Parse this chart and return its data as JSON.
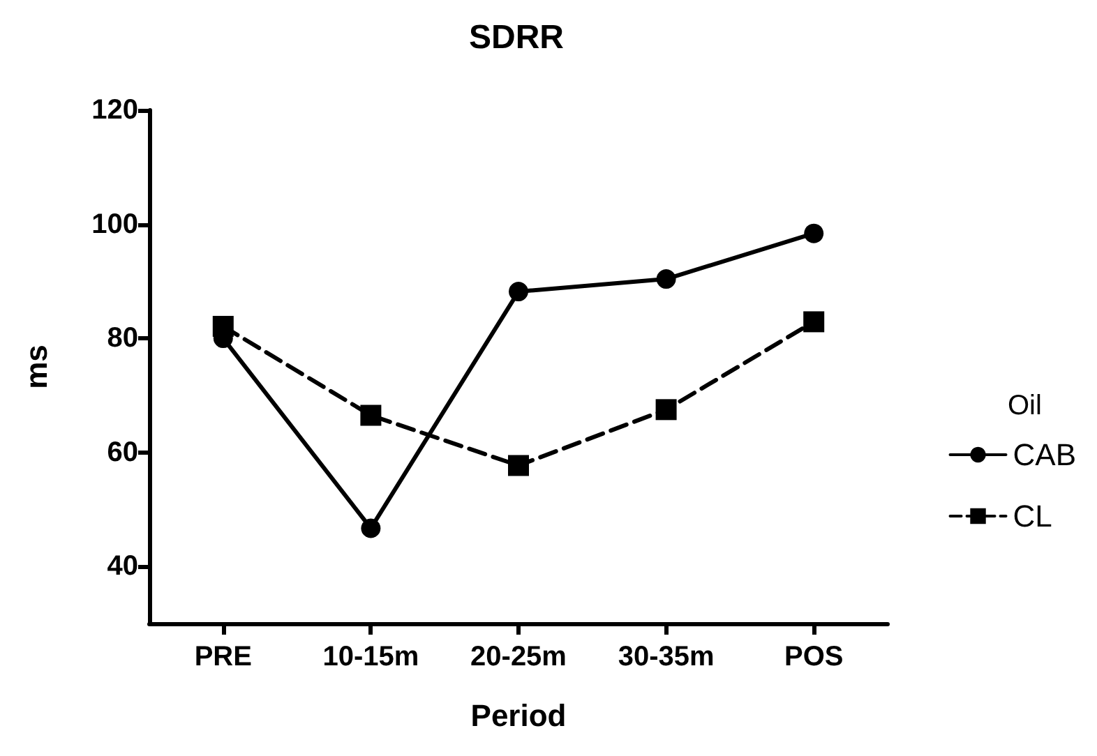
{
  "chart_data": {
    "type": "line",
    "title": "SDRR",
    "xlabel": "Period",
    "ylabel": "ms",
    "legend_title": "Oil",
    "categories": [
      "PRE",
      "10-15m",
      "20-25m",
      "30-35m",
      "POS"
    ],
    "series": [
      {
        "name": "CAB",
        "color": "#000000",
        "marker": "circle",
        "line_style": "solid",
        "values": [
          80,
          46.7,
          88.2,
          90.4,
          98.4
        ]
      },
      {
        "name": "CL",
        "color": "#000000",
        "marker": "square",
        "line_style": "dashed",
        "values": [
          82.1,
          66.5,
          57.7,
          67.5,
          82.9
        ]
      }
    ],
    "ylim": [
      30,
      120
    ],
    "yticks": [
      40,
      60,
      80,
      100,
      120
    ],
    "grid": false,
    "legend": "right"
  }
}
